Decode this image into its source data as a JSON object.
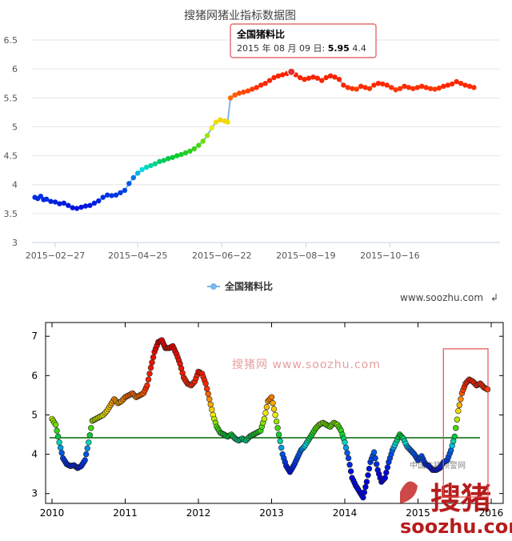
{
  "chart_data": [
    {
      "type": "scatter",
      "title": "搜猪网猪业指标数据图",
      "xlabel": "",
      "ylabel": "",
      "xlim": [
        "2015-02-11",
        "2015-12-31"
      ],
      "ylim": [
        3,
        6.5
      ],
      "y_ticks": [
        "3",
        "3.5",
        "4",
        "4.5",
        "5",
        "5.5",
        "6",
        "6.5"
      ],
      "x_ticks": [
        {
          "date": "2015-02-27",
          "label": "2015−02−27"
        },
        {
          "date": "2015-04-25",
          "label": "2015−04−25"
        },
        {
          "date": "2015-06-22",
          "label": "2015−06−22"
        },
        {
          "date": "2015-08-19",
          "label": "2015−08−19"
        },
        {
          "date": "2015-10-16",
          "label": "2015−10−16"
        }
      ],
      "legend": {
        "position": "bottom-center"
      },
      "series": [
        {
          "name": "全国猪料比",
          "color": "#7cb5ec",
          "points": [
            [
              "2015-02-13",
              3.78
            ],
            [
              "2015-02-15",
              3.76
            ],
            [
              "2015-02-17",
              3.8
            ],
            [
              "2015-02-19",
              3.74
            ],
            [
              "2015-02-21",
              3.75
            ],
            [
              "2015-02-24",
              3.71
            ],
            [
              "2015-02-27",
              3.7
            ],
            [
              "2015-03-02",
              3.67
            ],
            [
              "2015-03-05",
              3.68
            ],
            [
              "2015-03-08",
              3.64
            ],
            [
              "2015-03-11",
              3.6
            ],
            [
              "2015-03-14",
              3.59
            ],
            [
              "2015-03-17",
              3.61
            ],
            [
              "2015-03-20",
              3.63
            ],
            [
              "2015-03-23",
              3.64
            ],
            [
              "2015-03-26",
              3.68
            ],
            [
              "2015-03-29",
              3.72
            ],
            [
              "2015-04-01",
              3.78
            ],
            [
              "2015-04-04",
              3.82
            ],
            [
              "2015-04-07",
              3.81
            ],
            [
              "2015-04-10",
              3.82
            ],
            [
              "2015-04-13",
              3.86
            ],
            [
              "2015-04-16",
              3.9
            ],
            [
              "2015-04-19",
              4.02
            ],
            [
              "2015-04-22",
              4.12
            ],
            [
              "2015-04-25",
              4.2
            ],
            [
              "2015-04-28",
              4.26
            ],
            [
              "2015-05-01",
              4.3
            ],
            [
              "2015-05-04",
              4.33
            ],
            [
              "2015-05-07",
              4.36
            ],
            [
              "2015-05-10",
              4.4
            ],
            [
              "2015-05-13",
              4.42
            ],
            [
              "2015-05-16",
              4.45
            ],
            [
              "2015-05-19",
              4.47
            ],
            [
              "2015-05-22",
              4.5
            ],
            [
              "2015-05-25",
              4.52
            ],
            [
              "2015-05-28",
              4.55
            ],
            [
              "2015-05-31",
              4.58
            ],
            [
              "2015-06-03",
              4.62
            ],
            [
              "2015-06-06",
              4.68
            ],
            [
              "2015-06-09",
              4.75
            ],
            [
              "2015-06-12",
              4.85
            ],
            [
              "2015-06-15",
              4.98
            ],
            [
              "2015-06-18",
              5.08
            ],
            [
              "2015-06-21",
              5.12
            ],
            [
              "2015-06-24",
              5.1
            ],
            [
              "2015-06-26",
              5.08
            ],
            [
              "2015-06-28",
              5.5
            ],
            [
              "2015-07-01",
              5.55
            ],
            [
              "2015-07-04",
              5.58
            ],
            [
              "2015-07-07",
              5.6
            ],
            [
              "2015-07-10",
              5.62
            ],
            [
              "2015-07-13",
              5.65
            ],
            [
              "2015-07-16",
              5.68
            ],
            [
              "2015-07-19",
              5.72
            ],
            [
              "2015-07-22",
              5.75
            ],
            [
              "2015-07-25",
              5.8
            ],
            [
              "2015-07-28",
              5.85
            ],
            [
              "2015-07-31",
              5.88
            ],
            [
              "2015-08-03",
              5.9
            ],
            [
              "2015-08-06",
              5.92
            ],
            [
              "2015-08-09",
              5.95
            ],
            [
              "2015-08-12",
              5.9
            ],
            [
              "2015-08-15",
              5.85
            ],
            [
              "2015-08-18",
              5.82
            ],
            [
              "2015-08-21",
              5.84
            ],
            [
              "2015-08-24",
              5.86
            ],
            [
              "2015-08-27",
              5.84
            ],
            [
              "2015-08-30",
              5.8
            ],
            [
              "2015-09-02",
              5.85
            ],
            [
              "2015-09-05",
              5.88
            ],
            [
              "2015-09-08",
              5.86
            ],
            [
              "2015-09-11",
              5.82
            ],
            [
              "2015-09-14",
              5.72
            ],
            [
              "2015-09-17",
              5.68
            ],
            [
              "2015-09-20",
              5.66
            ],
            [
              "2015-09-23",
              5.65
            ],
            [
              "2015-09-26",
              5.7
            ],
            [
              "2015-09-29",
              5.68
            ],
            [
              "2015-10-02",
              5.66
            ],
            [
              "2015-10-05",
              5.72
            ],
            [
              "2015-10-08",
              5.75
            ],
            [
              "2015-10-11",
              5.74
            ],
            [
              "2015-10-14",
              5.72
            ],
            [
              "2015-10-17",
              5.68
            ],
            [
              "2015-10-20",
              5.64
            ],
            [
              "2015-10-23",
              5.66
            ],
            [
              "2015-10-26",
              5.7
            ],
            [
              "2015-10-29",
              5.68
            ],
            [
              "2015-11-01",
              5.66
            ],
            [
              "2015-11-04",
              5.68
            ],
            [
              "2015-11-07",
              5.7
            ],
            [
              "2015-11-10",
              5.68
            ],
            [
              "2015-11-13",
              5.66
            ],
            [
              "2015-11-16",
              5.65
            ],
            [
              "2015-11-19",
              5.67
            ],
            [
              "2015-11-22",
              5.7
            ],
            [
              "2015-11-25",
              5.72
            ],
            [
              "2015-11-28",
              5.74
            ],
            [
              "2015-12-01",
              5.78
            ],
            [
              "2015-12-04",
              5.75
            ],
            [
              "2015-12-07",
              5.72
            ],
            [
              "2015-12-10",
              5.7
            ],
            [
              "2015-12-13",
              5.68
            ]
          ]
        }
      ],
      "tooltip": {
        "title": "全国猪料比",
        "date_text": "2015 年 08 月 09 日:",
        "value_text": "5.95",
        "extra_text": "4.4",
        "point": [
          "2015-08-09",
          5.95
        ]
      }
    },
    {
      "type": "scatter",
      "title": "",
      "xlabel": "",
      "ylabel": "",
      "xlim": [
        2010,
        2016
      ],
      "ylim": [
        2.75,
        7.35
      ],
      "y_ticks": [
        "3",
        "4",
        "5",
        "6",
        "7"
      ],
      "x_ticks": [
        "2010",
        "2011",
        "2012",
        "2013",
        "2014",
        "2015",
        "2016"
      ],
      "reference_line": {
        "value": 4.42,
        "color": "#006400"
      },
      "highlight_box": {
        "x_range": [
          2015.5,
          2016.1
        ],
        "y_range": [
          2.75,
          6.6
        ],
        "color": "#e05050"
      },
      "series": [
        {
          "name": "",
          "points": [
            [
              2010.0,
              4.9
            ],
            [
              2010.05,
              4.75
            ],
            [
              2010.1,
              4.3
            ],
            [
              2010.15,
              3.9
            ],
            [
              2010.2,
              3.75
            ],
            [
              2010.25,
              3.7
            ],
            [
              2010.3,
              3.72
            ],
            [
              2010.35,
              3.65
            ],
            [
              2010.4,
              3.7
            ],
            [
              2010.45,
              3.85
            ],
            [
              2010.5,
              4.3
            ],
            [
              2010.55,
              4.85
            ],
            [
              2010.6,
              4.9
            ],
            [
              2010.65,
              4.95
            ],
            [
              2010.7,
              5.0
            ],
            [
              2010.75,
              5.1
            ],
            [
              2010.8,
              5.25
            ],
            [
              2010.85,
              5.4
            ],
            [
              2010.9,
              5.3
            ],
            [
              2010.95,
              5.35
            ],
            [
              2011.0,
              5.45
            ],
            [
              2011.05,
              5.5
            ],
            [
              2011.1,
              5.55
            ],
            [
              2011.15,
              5.45
            ],
            [
              2011.2,
              5.5
            ],
            [
              2011.25,
              5.55
            ],
            [
              2011.3,
              5.75
            ],
            [
              2011.35,
              6.2
            ],
            [
              2011.4,
              6.6
            ],
            [
              2011.45,
              6.85
            ],
            [
              2011.5,
              6.9
            ],
            [
              2011.55,
              6.7
            ],
            [
              2011.6,
              6.7
            ],
            [
              2011.65,
              6.75
            ],
            [
              2011.7,
              6.55
            ],
            [
              2011.75,
              6.3
            ],
            [
              2011.8,
              5.95
            ],
            [
              2011.85,
              5.8
            ],
            [
              2011.9,
              5.75
            ],
            [
              2011.95,
              5.85
            ],
            [
              2012.0,
              6.1
            ],
            [
              2012.05,
              6.05
            ],
            [
              2012.1,
              5.8
            ],
            [
              2012.15,
              5.4
            ],
            [
              2012.2,
              5.0
            ],
            [
              2012.25,
              4.7
            ],
            [
              2012.3,
              4.55
            ],
            [
              2012.35,
              4.5
            ],
            [
              2012.4,
              4.45
            ],
            [
              2012.45,
              4.5
            ],
            [
              2012.5,
              4.4
            ],
            [
              2012.55,
              4.35
            ],
            [
              2012.6,
              4.4
            ],
            [
              2012.65,
              4.35
            ],
            [
              2012.7,
              4.45
            ],
            [
              2012.75,
              4.5
            ],
            [
              2012.8,
              4.55
            ],
            [
              2012.85,
              4.6
            ],
            [
              2012.9,
              4.9
            ],
            [
              2012.95,
              5.35
            ],
            [
              2013.0,
              5.45
            ],
            [
              2013.05,
              5.0
            ],
            [
              2013.1,
              4.5
            ],
            [
              2013.15,
              4.0
            ],
            [
              2013.2,
              3.7
            ],
            [
              2013.25,
              3.55
            ],
            [
              2013.3,
              3.7
            ],
            [
              2013.35,
              3.9
            ],
            [
              2013.4,
              4.1
            ],
            [
              2013.45,
              4.2
            ],
            [
              2013.5,
              4.35
            ],
            [
              2013.55,
              4.5
            ],
            [
              2013.6,
              4.65
            ],
            [
              2013.65,
              4.75
            ],
            [
              2013.7,
              4.8
            ],
            [
              2013.75,
              4.75
            ],
            [
              2013.8,
              4.7
            ],
            [
              2013.85,
              4.8
            ],
            [
              2013.9,
              4.75
            ],
            [
              2013.95,
              4.6
            ],
            [
              2014.0,
              4.3
            ],
            [
              2014.05,
              3.9
            ],
            [
              2014.1,
              3.4
            ],
            [
              2014.15,
              3.2
            ],
            [
              2014.2,
              3.05
            ],
            [
              2014.25,
              2.9
            ],
            [
              2014.3,
              3.3
            ],
            [
              2014.35,
              3.8
            ],
            [
              2014.4,
              4.05
            ],
            [
              2014.45,
              3.6
            ],
            [
              2014.5,
              3.3
            ],
            [
              2014.55,
              3.4
            ],
            [
              2014.6,
              3.8
            ],
            [
              2014.65,
              4.1
            ],
            [
              2014.7,
              4.3
            ],
            [
              2014.75,
              4.5
            ],
            [
              2014.8,
              4.4
            ],
            [
              2014.85,
              4.2
            ],
            [
              2014.9,
              4.1
            ],
            [
              2014.95,
              4.0
            ],
            [
              2015.0,
              3.85
            ],
            [
              2015.05,
              3.95
            ],
            [
              2015.1,
              3.75
            ],
            [
              2015.15,
              3.7
            ],
            [
              2015.2,
              3.6
            ],
            [
              2015.25,
              3.6
            ],
            [
              2015.3,
              3.65
            ],
            [
              2015.35,
              3.8
            ],
            [
              2015.4,
              3.85
            ],
            [
              2015.45,
              4.1
            ],
            [
              2015.5,
              4.45
            ],
            [
              2015.55,
              5.1
            ],
            [
              2015.6,
              5.55
            ],
            [
              2015.65,
              5.8
            ],
            [
              2015.7,
              5.9
            ],
            [
              2015.75,
              5.85
            ],
            [
              2015.8,
              5.75
            ],
            [
              2015.85,
              5.8
            ],
            [
              2015.9,
              5.7
            ],
            [
              2015.95,
              5.65
            ]
          ]
        }
      ],
      "watermark": {
        "text": "搜猪网 www.soozhu.com",
        "logo_text": "搜猪",
        "logo_url": "soozhu.com",
        "small_text": "中国生猪预警网"
      }
    }
  ],
  "legend": {
    "label": "全国猪料比",
    "color": "#7cb5ec"
  },
  "site_url": "www.soozhu.com"
}
